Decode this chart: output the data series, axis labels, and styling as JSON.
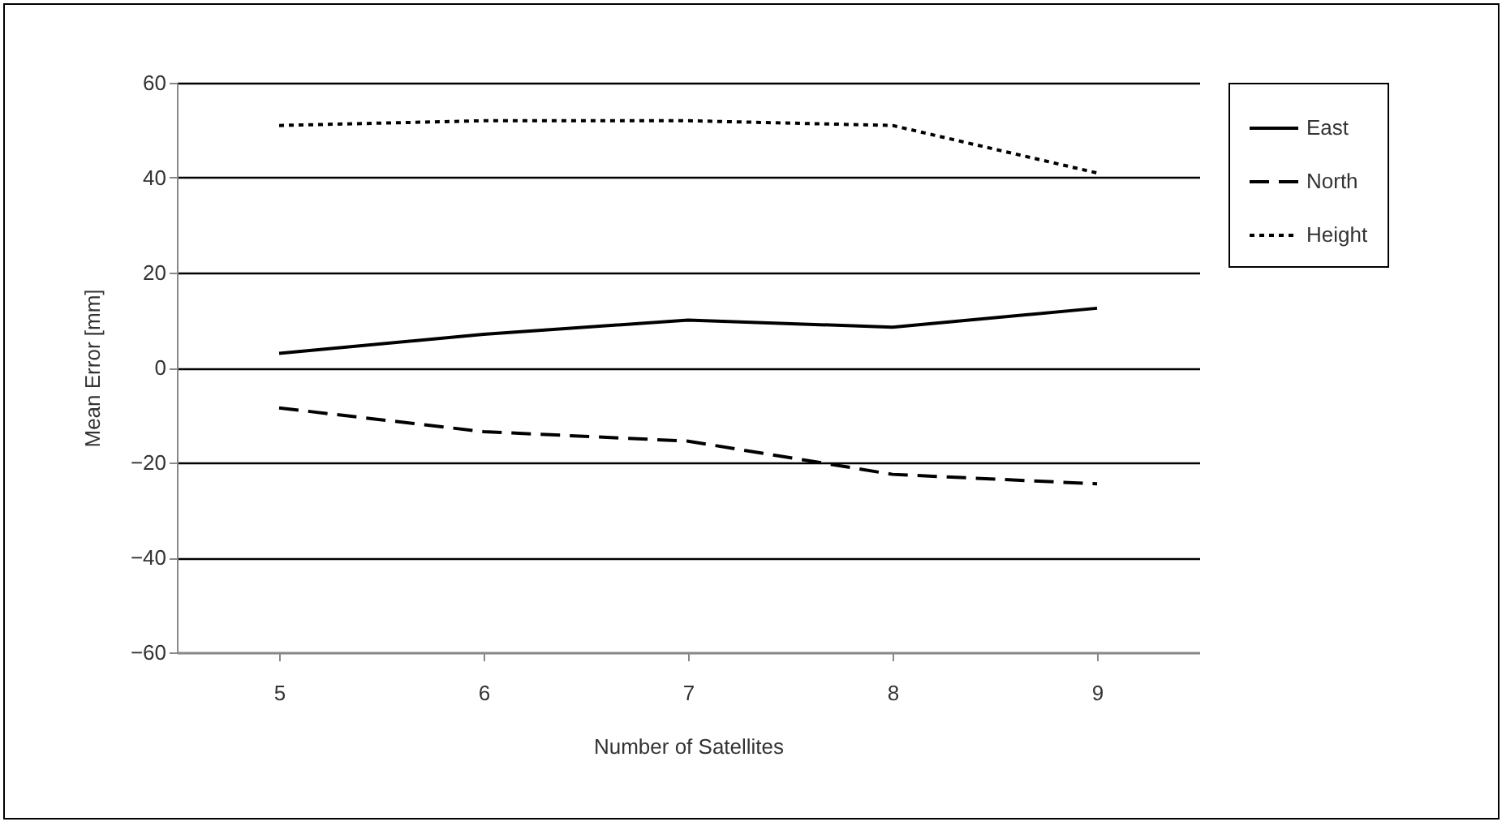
{
  "chart_data": {
    "type": "line",
    "xlabel": "Number of Satellites",
    "ylabel": "Mean Error [mm]",
    "categories": [
      "5",
      "6",
      "7",
      "8",
      "9"
    ],
    "series": [
      {
        "name": "East",
        "color": "#000000",
        "line_style": "solid",
        "values": [
          3,
          7,
          10,
          8.5,
          12.5
        ]
      },
      {
        "name": "North",
        "color": "#000000",
        "line_style": "dashed",
        "values": [
          -8.5,
          -13.5,
          -15.5,
          -22.5,
          -24.5
        ]
      },
      {
        "name": "Height",
        "color": "#000000",
        "line_style": "dotted",
        "values": [
          51,
          52,
          52,
          51,
          41
        ]
      }
    ],
    "ylim": [
      -60,
      60
    ],
    "yticks": [
      -60,
      -40,
      -20,
      0,
      20,
      40,
      60
    ],
    "grid": "y",
    "legend": "right",
    "marker": "none"
  }
}
